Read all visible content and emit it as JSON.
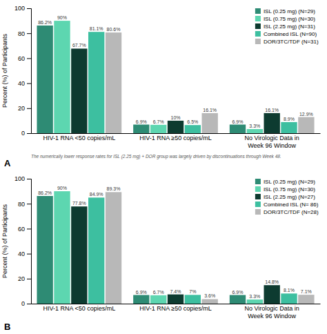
{
  "chart_data": [
    {
      "type": "bar",
      "categories": [
        "HIV-1 RNA <50 copies/mL",
        "HIV-1 RNA ≥50 copies/mL",
        "No Virologic Data in\nWeek 96 Window"
      ],
      "series": [
        {
          "name": "ISL (0.25 mg) (N=29)",
          "color": "#2e8b74",
          "values": [
            86.2,
            6.9,
            6.9
          ],
          "value_labels": [
            "86.2%",
            "6.9%",
            "6.9%"
          ]
        },
        {
          "name": "ISL (0.75 mg) (N=30)",
          "color": "#5dd6b0",
          "values": [
            90.0,
            6.7,
            3.3
          ],
          "value_labels": [
            "90%",
            "6.7%",
            "3.3%"
          ]
        },
        {
          "name": "ISL (2.25 mg) (N=31)",
          "color": "#0d3b30",
          "values": [
            67.7,
            10.0,
            16.1
          ],
          "value_labels": [
            "67.7%",
            "10%",
            "16.1%"
          ]
        },
        {
          "name": "Combined ISL (N=90)",
          "color": "#3dbfa0",
          "values": [
            81.1,
            6.5,
            8.9
          ],
          "value_labels": [
            "81.1%",
            "6.5%",
            "8.9%"
          ]
        },
        {
          "name": "DOR/3TC/TDF (N=31)",
          "color": "#b8b8b8",
          "values": [
            80.6,
            16.1,
            12.9
          ],
          "value_labels": [
            "80.6%",
            "16.1%",
            "12.9%"
          ]
        }
      ],
      "y_label": "Percent (%) of Participants",
      "ylim": [
        0,
        100
      ],
      "yticks": [
        0,
        20,
        40,
        60,
        80,
        100
      ],
      "annotations": [
        "A",
        "The numerically lower response rates for ISL (2.25 mg) + DOR group was largely driven by discontinuations through Week 48."
      ],
      "data_labels": true,
      "legend": "upper right",
      "grid": false
    },
    {
      "type": "bar",
      "categories": [
        "HIV-1 RNA <50 copies/mL",
        "HIV-1 RNA ≥50 copies/mL",
        "No Virologic Data in\nWeek 96 Window"
      ],
      "series": [
        {
          "name": "ISL (0.25 mg) (N=29)",
          "color": "#2e8b74",
          "values": [
            86.2,
            6.9,
            6.9
          ],
          "value_labels": [
            "86.2%",
            "6.9%",
            "6.9%"
          ]
        },
        {
          "name": "ISL (0.75 mg) (N=30)",
          "color": "#5dd6b0",
          "values": [
            90.0,
            6.7,
            3.3
          ],
          "value_labels": [
            "90%",
            "6.7%",
            "3.3%"
          ]
        },
        {
          "name": "ISL (2.25 mg) (N=27)",
          "color": "#0d3b30",
          "values": [
            77.8,
            7.4,
            14.8
          ],
          "value_labels": [
            "77.8%",
            "7.4%",
            "14.8%"
          ]
        },
        {
          "name": "Combined ISL (N= 86)",
          "color": "#3dbfa0",
          "values": [
            84.9,
            7.0,
            8.1
          ],
          "value_labels": [
            "84.9%",
            "7%",
            "8.1%"
          ]
        },
        {
          "name": "DOR/3TC/TDF (N=28)",
          "color": "#b8b8b8",
          "values": [
            89.3,
            3.6,
            7.1
          ],
          "value_labels": [
            "89.3%",
            "3.6%",
            "7.1%"
          ]
        }
      ],
      "y_label": "Percent (%) of Participants",
      "ylim": [
        0,
        100
      ],
      "yticks": [
        0,
        20,
        40,
        60,
        80,
        100
      ],
      "annotations": [
        "B"
      ],
      "data_labels": true,
      "legend": "upper right",
      "grid": false
    }
  ]
}
